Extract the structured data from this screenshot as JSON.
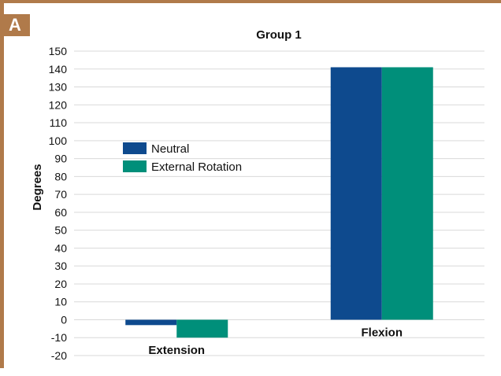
{
  "panel_label": "A",
  "colors": {
    "frame": "#b07a4a",
    "neutral": "#0e4a8e",
    "external_rotation": "#008f7a",
    "grid": "#d9d9d9"
  },
  "chart_data": {
    "type": "bar",
    "title": "Group 1",
    "xlabel": "",
    "ylabel": "Degrees",
    "categories": [
      "Extension",
      "Flexion"
    ],
    "series": [
      {
        "name": "Neutral",
        "values": [
          -3,
          141
        ]
      },
      {
        "name": "External Rotation",
        "values": [
          -10,
          141
        ]
      }
    ],
    "ylim": [
      -20,
      150
    ],
    "yticks": [
      150,
      140,
      130,
      120,
      110,
      100,
      90,
      80,
      70,
      60,
      50,
      40,
      30,
      20,
      10,
      0,
      -10,
      -20
    ],
    "grid": true,
    "legend": "left"
  }
}
